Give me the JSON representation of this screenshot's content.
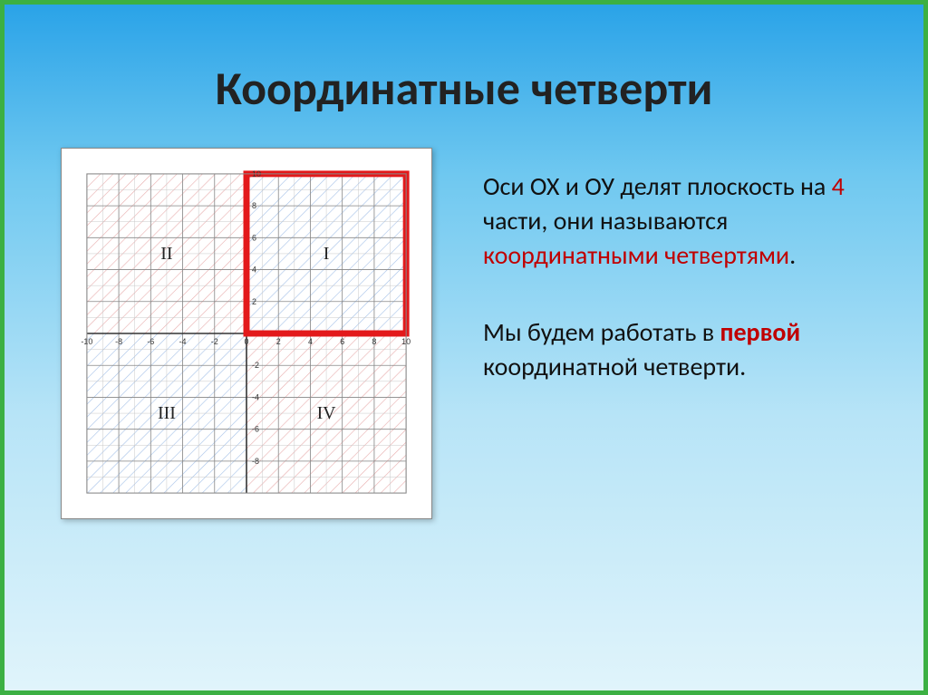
{
  "title": "Координатные четверти",
  "text": {
    "p1_pre": "Оси ОХ и ОУ  делят плоскость на ",
    "p1_four": "4",
    "p1_mid": " части, они называются ",
    "p1_red": "координатными четвертями",
    "p1_end": ".",
    "p2_pre": " Мы будем работать в ",
    "p2_red": "первой",
    "p2_end": " координатной четверти."
  },
  "chart": {
    "type": "quadrant-grid",
    "xlim": [
      -10,
      10
    ],
    "ylim": [
      -10,
      10
    ],
    "tick_step": 2,
    "tick_labels_x": [
      "-10",
      "-8",
      "-6",
      "-4",
      "-2",
      "0",
      "2",
      "4",
      "6",
      "8",
      "10"
    ],
    "tick_labels_y_right": [
      "10",
      "8",
      "6",
      "4",
      "2",
      "-2",
      "-4",
      "-6",
      "-8"
    ],
    "grid_minor_step": 1,
    "quadrants": [
      {
        "name": "I",
        "row": 0,
        "col": 1,
        "hatch_color": "#5b8fd6",
        "highlight": true
      },
      {
        "name": "II",
        "row": 0,
        "col": 0,
        "hatch_color": "#d66a6a",
        "highlight": false
      },
      {
        "name": "III",
        "row": 1,
        "col": 0,
        "hatch_color": "#5b8fd6",
        "highlight": false
      },
      {
        "name": "IV",
        "row": 1,
        "col": 1,
        "hatch_color": "#d66a6a",
        "highlight": false
      }
    ],
    "minor_grid_color": "#c8c8c8",
    "major_grid_color": "#888888",
    "axis_color": "#333333",
    "highlight_border_color": "#e3191b",
    "highlight_border_width": 7,
    "background_color": "#ffffff",
    "label_fontsize": 20,
    "tick_fontsize": 9,
    "svg_size": 410,
    "pad": 28
  },
  "colors": {
    "accent_red": "#c00000",
    "slide_border": "#3cb043"
  }
}
